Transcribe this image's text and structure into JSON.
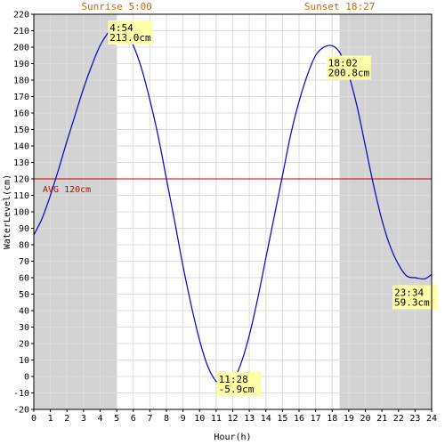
{
  "chart_data": {
    "type": "line",
    "xlabel": "Hour(h)",
    "ylabel": "WaterLevel(cm)",
    "xlim": [
      0,
      24
    ],
    "ylim": [
      -20,
      220
    ],
    "x_ticks": [
      0,
      1,
      2,
      3,
      4,
      5,
      6,
      7,
      8,
      9,
      10,
      11,
      12,
      13,
      14,
      15,
      16,
      17,
      18,
      19,
      20,
      21,
      22,
      23,
      24
    ],
    "y_ticks": [
      -20,
      -10,
      0,
      10,
      20,
      30,
      40,
      50,
      60,
      70,
      80,
      90,
      100,
      110,
      120,
      130,
      140,
      150,
      160,
      170,
      180,
      190,
      200,
      210,
      220
    ],
    "grid": true,
    "colors": {
      "line": "#0000cc",
      "average": "#cc0000",
      "night_shade": "#d3d3d3",
      "sun_labels": "#cc6600",
      "annotation_bg": "#ffffaa",
      "grid": "#dddddd"
    },
    "sunrise": {
      "label": "Sunrise 5:00",
      "hour": 5.0
    },
    "sunset": {
      "label": "Sunset 18:27",
      "hour": 18.45
    },
    "average": {
      "label": "AVG 120cm",
      "value": 120
    },
    "series": [
      {
        "x": [
          0,
          0.5,
          1,
          1.5,
          2,
          2.5,
          3,
          3.5,
          4,
          4.5,
          4.9,
          5.5,
          6,
          6.5,
          7,
          7.5,
          8,
          8.5,
          9,
          9.5,
          10,
          10.5,
          11,
          11.47,
          12,
          12.5,
          13,
          13.5,
          14,
          14.5,
          15,
          15.5,
          16,
          16.5,
          17,
          17.5,
          18.03,
          18.5,
          19,
          19.5,
          20,
          20.5,
          21,
          21.5,
          22,
          22.5,
          23,
          23.57,
          24
        ],
        "values": [
          86,
          96,
          110,
          126,
          143,
          159,
          175,
          189,
          201,
          209,
          213,
          210,
          201,
          187,
          168,
          146,
          120,
          94,
          67,
          43,
          22,
          6,
          -3,
          -5.9,
          -3,
          8,
          25,
          47,
          72,
          97,
          122,
          147,
          167,
          183,
          195,
          200,
          200.8,
          196,
          183,
          164,
          140,
          116,
          95,
          79,
          68,
          61,
          60,
          59.3,
          62
        ]
      }
    ],
    "annotations": [
      {
        "time": "4:54",
        "value": "213.0cm",
        "x": 4.9,
        "y": 213.0
      },
      {
        "time": "11:28",
        "value": "-5.9cm",
        "x": 11.47,
        "y": -5.9
      },
      {
        "time": "18:02",
        "value": "200.8cm",
        "x": 18.03,
        "y": 200.8
      },
      {
        "time": "23:34",
        "value": "59.3cm",
        "x": 23.57,
        "y": 59.3
      }
    ]
  }
}
